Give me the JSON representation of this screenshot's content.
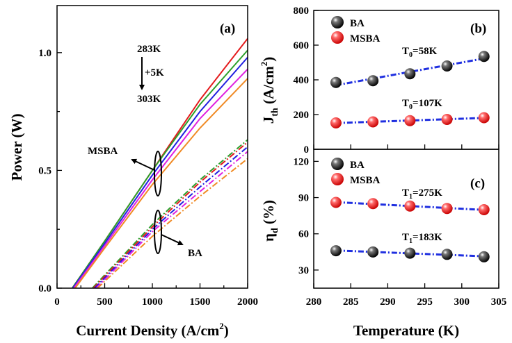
{
  "chart_data": [
    {
      "panel": "(a)",
      "type": "line",
      "xlabel": "Current Density (A/cm²)",
      "xlabel_main": "Current Density (A/cm",
      "xlabel_sup": "2",
      "xlabel_end": ")",
      "ylabel": "Power (W)",
      "xlim": [
        0,
        2000
      ],
      "ylim": [
        0,
        1.2
      ],
      "xticks": [
        0,
        500,
        1000,
        1500,
        2000
      ],
      "yticks": [
        0.0,
        0.5,
        1.0
      ],
      "ytick_labels": [
        "0.0",
        "0.5",
        "1.0"
      ],
      "temperature_note": {
        "top": "283K",
        "step": "+5K",
        "bottom": "303K"
      },
      "group_labels": {
        "msba": "MSBA",
        "ba": "BA"
      },
      "series": [
        {
          "group": "MSBA",
          "style": "solid",
          "color": "#e41a1c",
          "points": [
            [
              160,
              0
            ],
            [
              500,
              0.2
            ],
            [
              1000,
              0.5
            ],
            [
              1500,
              0.8
            ],
            [
              2000,
              1.06
            ]
          ]
        },
        {
          "group": "MSBA",
          "style": "solid",
          "color": "#2ca02c",
          "points": [
            [
              160,
              0
            ],
            [
              500,
              0.2
            ],
            [
              1000,
              0.5
            ],
            [
              1500,
              0.78
            ],
            [
              2000,
              1.01
            ]
          ]
        },
        {
          "group": "MSBA",
          "style": "solid",
          "color": "#1f1fe0",
          "points": [
            [
              165,
              0
            ],
            [
              500,
              0.19
            ],
            [
              1000,
              0.48
            ],
            [
              1500,
              0.75
            ],
            [
              2000,
              0.98
            ]
          ]
        },
        {
          "group": "MSBA",
          "style": "solid",
          "color": "#e020e0",
          "points": [
            [
              175,
              0
            ],
            [
              500,
              0.18
            ],
            [
              1000,
              0.46
            ],
            [
              1500,
              0.72
            ],
            [
              2000,
              0.93
            ]
          ]
        },
        {
          "group": "MSBA",
          "style": "solid",
          "color": "#f08a24",
          "points": [
            [
              190,
              0
            ],
            [
              500,
              0.17
            ],
            [
              1000,
              0.44
            ],
            [
              1500,
              0.68
            ],
            [
              2000,
              0.89
            ]
          ]
        },
        {
          "group": "BA",
          "style": "dashdot",
          "color": "#2ca02c",
          "points": [
            [
              370,
              0
            ],
            [
              1000,
              0.27
            ],
            [
              1500,
              0.46
            ],
            [
              2000,
              0.63
            ]
          ]
        },
        {
          "group": "BA",
          "style": "dashdot",
          "color": "#e41a1c",
          "points": [
            [
              380,
              0
            ],
            [
              1000,
              0.26
            ],
            [
              1500,
              0.45
            ],
            [
              2000,
              0.62
            ]
          ]
        },
        {
          "group": "BA",
          "style": "dashdot",
          "color": "#1f1fe0",
          "points": [
            [
              395,
              0
            ],
            [
              1000,
              0.25
            ],
            [
              1500,
              0.43
            ],
            [
              2000,
              0.6
            ]
          ]
        },
        {
          "group": "BA",
          "style": "dashdot",
          "color": "#e020e0",
          "points": [
            [
              410,
              0
            ],
            [
              1000,
              0.24
            ],
            [
              1500,
              0.41
            ],
            [
              2000,
              0.58
            ]
          ]
        },
        {
          "group": "BA",
          "style": "dashdot",
          "color": "#f08a24",
          "points": [
            [
              425,
              0
            ],
            [
              1000,
              0.22
            ],
            [
              1500,
              0.39
            ],
            [
              2000,
              0.55
            ]
          ]
        }
      ]
    },
    {
      "panel": "(b)",
      "type": "scatter",
      "ylabel": "Jth (A/cm²)",
      "ylabel_main": "J",
      "ylabel_sub": "th",
      "ylabel_mid": " (A/cm",
      "ylabel_sup": "2",
      "ylabel_end": ")",
      "xlim": [
        280,
        305
      ],
      "ylim": [
        0,
        800
      ],
      "yticks": [
        0,
        200,
        400,
        600,
        800
      ],
      "legend": [
        "BA",
        "MSBA"
      ],
      "x": [
        283,
        288,
        293,
        298,
        303
      ],
      "series": [
        {
          "name": "BA",
          "color": "#000000",
          "values": [
            385,
            395,
            435,
            480,
            535
          ],
          "fit_label": "T0=58K",
          "fit_label_parts": [
            "T",
            "0",
            "=58K"
          ]
        },
        {
          "name": "MSBA",
          "color": "#e41a1c",
          "values": [
            152,
            158,
            165,
            172,
            182
          ],
          "fit_label": "T0=107K",
          "fit_label_parts": [
            "T",
            "0",
            "=107K"
          ]
        }
      ]
    },
    {
      "panel": "(c)",
      "type": "scatter",
      "ylabel": "ηd (%)",
      "ylabel_main": "η",
      "ylabel_sub": "d",
      "ylabel_end": " (%)",
      "xlabel": "Temperature (K)",
      "xlim": [
        280,
        305
      ],
      "ylim": [
        15,
        130
      ],
      "xticks": [
        280,
        285,
        290,
        295,
        300,
        305
      ],
      "yticks": [
        30,
        60,
        90,
        120
      ],
      "legend": [
        "BA",
        "MSBA"
      ],
      "x": [
        283,
        288,
        293,
        298,
        303
      ],
      "series": [
        {
          "name": "BA",
          "color": "#000000",
          "values": [
            46,
            45,
            44,
            43,
            41
          ],
          "fit_label": "T1=183K",
          "fit_label_parts": [
            "T",
            "1",
            "=183K"
          ]
        },
        {
          "name": "MSBA",
          "color": "#e41a1c",
          "values": [
            86,
            85,
            83,
            81,
            80
          ],
          "fit_label": "T1=275K",
          "fit_label_parts": [
            "T",
            "1",
            "=275K"
          ]
        }
      ]
    }
  ]
}
